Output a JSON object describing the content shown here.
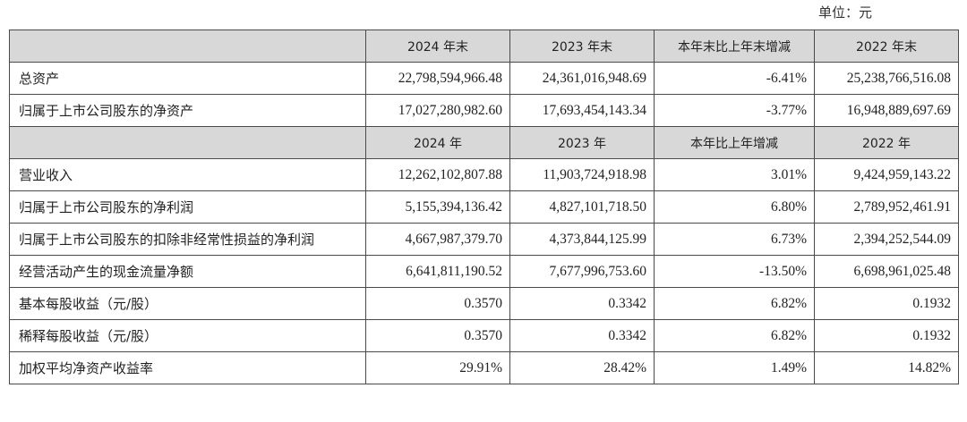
{
  "unit_label": "单位：元",
  "header_1": [
    "",
    "2024 年末",
    "2023 年末",
    "本年末比上年末增减",
    "2022 年末"
  ],
  "section_1": [
    {
      "label": "总资产",
      "v2024": "22,798,594,966.48",
      "v2023": "24,361,016,948.69",
      "change": "-6.41%",
      "v2022": "25,238,766,516.08"
    },
    {
      "label": "归属于上市公司股东的净资产",
      "v2024": "17,027,280,982.60",
      "v2023": "17,693,454,143.34",
      "change": "-3.77%",
      "v2022": "16,948,889,697.69"
    }
  ],
  "header_2": [
    "",
    "2024 年",
    "2023 年",
    "本年比上年增减",
    "2022 年"
  ],
  "section_2": [
    {
      "label": "营业收入",
      "v2024": "12,262,102,807.88",
      "v2023": "11,903,724,918.98",
      "change": "3.01%",
      "v2022": "9,424,959,143.22"
    },
    {
      "label": "归属于上市公司股东的净利润",
      "v2024": "5,155,394,136.42",
      "v2023": "4,827,101,718.50",
      "change": "6.80%",
      "v2022": "2,789,952,461.91"
    },
    {
      "label": "归属于上市公司股东的扣除非经常性损益的净利润",
      "v2024": "4,667,987,379.70",
      "v2023": "4,373,844,125.99",
      "change": "6.73%",
      "v2022": "2,394,252,544.09"
    },
    {
      "label": "经营活动产生的现金流量净额",
      "v2024": "6,641,811,190.52",
      "v2023": "7,677,996,753.60",
      "change": "-13.50%",
      "v2022": "6,698,961,025.48"
    },
    {
      "label": "基本每股收益（元/股）",
      "v2024": "0.3570",
      "v2023": "0.3342",
      "change": "6.82%",
      "v2022": "0.1932"
    },
    {
      "label": "稀释每股收益（元/股）",
      "v2024": "0.3570",
      "v2023": "0.3342",
      "change": "6.82%",
      "v2022": "0.1932"
    },
    {
      "label": "加权平均净资产收益率",
      "v2024": "29.91%",
      "v2023": "28.42%",
      "change": "1.49%",
      "v2022": "14.82%"
    }
  ]
}
